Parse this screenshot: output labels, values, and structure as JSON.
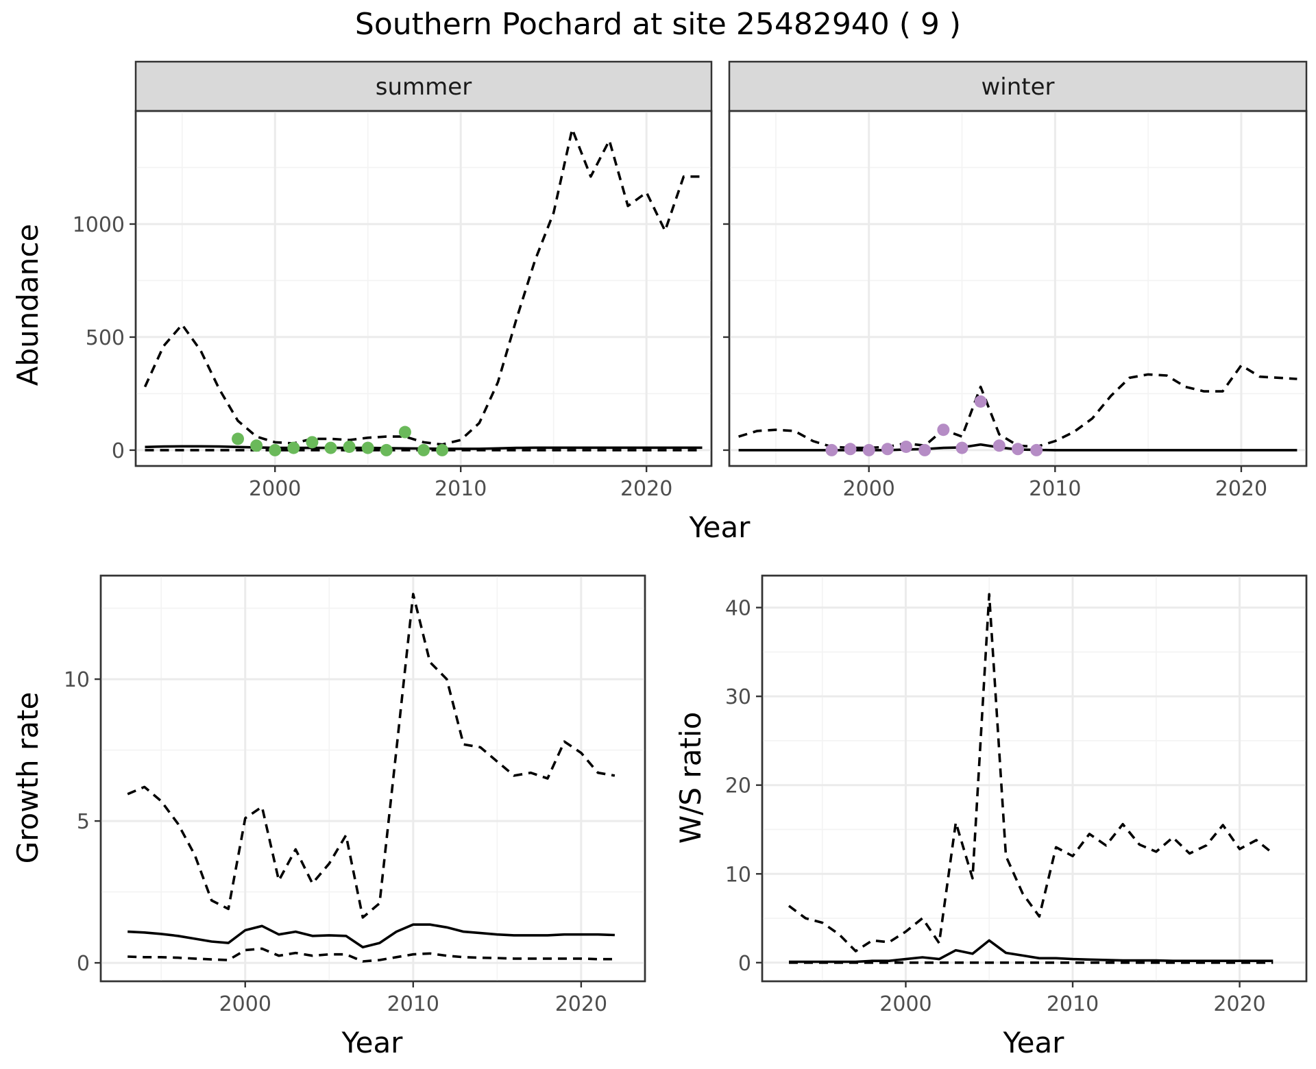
{
  "title": "Southern Pochard at site 25482940 ( 9 )",
  "chart_data": [
    {
      "type": "line",
      "panel": "summer",
      "strip_label": "summer",
      "xlabel": "Year",
      "ylabel": "Abundance",
      "xlim": [
        1992.5,
        2023.5
      ],
      "ylim": [
        -70,
        1500
      ],
      "x_ticks": [
        2000,
        2010,
        2020
      ],
      "y_ticks": [
        0,
        500,
        1000
      ],
      "grid": true,
      "series": [
        {
          "style": "dashed",
          "color": "#000000",
          "x": [
            1993,
            1994,
            1995,
            1996,
            1997,
            1998,
            1999,
            2000,
            2001,
            2002,
            2003,
            2004,
            2005,
            2006,
            2007,
            2008,
            2009,
            2010,
            2011,
            2012,
            2013,
            2014,
            2015,
            2016,
            2017,
            2018,
            2019,
            2020,
            2021,
            2022,
            2023
          ],
          "y": [
            280,
            460,
            555,
            440,
            270,
            130,
            60,
            35,
            30,
            50,
            50,
            45,
            55,
            60,
            60,
            35,
            25,
            45,
            120,
            300,
            580,
            840,
            1050,
            1420,
            1210,
            1370,
            1080,
            1140,
            970,
            1210,
            1210
          ]
        },
        {
          "style": "solid",
          "color": "#000000",
          "x": [
            1993,
            1994,
            1995,
            1996,
            1997,
            1998,
            1999,
            2000,
            2001,
            2002,
            2003,
            2004,
            2005,
            2006,
            2007,
            2008,
            2009,
            2010,
            2011,
            2012,
            2013,
            2014,
            2015,
            2016,
            2017,
            2018,
            2019,
            2020,
            2021,
            2022,
            2023
          ],
          "y": [
            14,
            16,
            17,
            17,
            16,
            14,
            12,
            10,
            10,
            10,
            10,
            10,
            10,
            9,
            8,
            7,
            6,
            6,
            6,
            8,
            10,
            11,
            11,
            11,
            11,
            11,
            11,
            11,
            11,
            11,
            11
          ]
        },
        {
          "style": "dashed",
          "color": "#000000",
          "x": [
            1993,
            1998,
            2003,
            2008,
            2013,
            2018,
            2023
          ],
          "y": [
            0,
            0,
            0,
            0,
            0,
            0,
            0
          ]
        },
        {
          "style": "points",
          "color": "#6ab95a",
          "x": [
            1998,
            1999,
            2000,
            2001,
            2002,
            2003,
            2004,
            2005,
            2006,
            2007,
            2008,
            2009
          ],
          "y": [
            50,
            20,
            0,
            10,
            35,
            10,
            15,
            10,
            0,
            80,
            0,
            0
          ]
        }
      ]
    },
    {
      "type": "line",
      "panel": "winter",
      "strip_label": "winter",
      "xlabel": "Year",
      "ylabel": "Abundance",
      "xlim": [
        1992.5,
        2023.5
      ],
      "ylim": [
        -70,
        1500
      ],
      "x_ticks": [
        2000,
        2010,
        2020
      ],
      "y_ticks": [
        0,
        500,
        1000
      ],
      "grid": true,
      "series": [
        {
          "style": "dashed",
          "color": "#000000",
          "x": [
            1993,
            1994,
            1995,
            1996,
            1997,
            1998,
            1999,
            2000,
            2001,
            2002,
            2003,
            2004,
            2005,
            2006,
            2007,
            2008,
            2009,
            2010,
            2011,
            2012,
            2013,
            2014,
            2015,
            2016,
            2017,
            2018,
            2019,
            2020,
            2021,
            2022,
            2023
          ],
          "y": [
            60,
            85,
            90,
            85,
            40,
            15,
            10,
            10,
            15,
            30,
            20,
            90,
            60,
            280,
            70,
            20,
            15,
            40,
            80,
            140,
            240,
            320,
            335,
            330,
            280,
            260,
            260,
            375,
            325,
            320,
            315
          ]
        },
        {
          "style": "solid",
          "color": "#000000",
          "x": [
            1993,
            1994,
            1995,
            1996,
            1997,
            1998,
            1999,
            2000,
            2001,
            2002,
            2003,
            2004,
            2005,
            2006,
            2007,
            2008,
            2009,
            2010,
            2011,
            2012,
            2013,
            2014,
            2015,
            2016,
            2017,
            2018,
            2019,
            2020,
            2021,
            2022,
            2023
          ],
          "y": [
            0,
            0,
            0,
            0,
            0,
            0,
            0,
            0,
            0,
            3,
            5,
            10,
            12,
            25,
            12,
            3,
            1,
            0,
            0,
            0,
            0,
            0,
            0,
            0,
            0,
            0,
            0,
            0,
            0,
            0,
            0
          ]
        },
        {
          "style": "points",
          "color": "#b58cc5",
          "x": [
            1998,
            1999,
            2000,
            2001,
            2002,
            2003,
            2004,
            2005,
            2006,
            2007,
            2008,
            2009
          ],
          "y": [
            0,
            5,
            0,
            5,
            15,
            0,
            90,
            10,
            215,
            20,
            5,
            0
          ]
        }
      ]
    },
    {
      "type": "line",
      "panel": "growth",
      "xlabel": "Year",
      "ylabel": "Growth rate",
      "xlim": [
        1991.4,
        2023.8
      ],
      "ylim": [
        -0.65,
        13.65
      ],
      "x_ticks": [
        2000,
        2010,
        2020
      ],
      "y_ticks": [
        0,
        5,
        10
      ],
      "grid": true,
      "series": [
        {
          "style": "dashed",
          "color": "#000000",
          "x": [
            1993,
            1994,
            1995,
            1996,
            1997,
            1998,
            1999,
            2000,
            2001,
            2002,
            2003,
            2004,
            2005,
            2006,
            2007,
            2008,
            2009,
            2010,
            2011,
            2012,
            2013,
            2014,
            2015,
            2016,
            2017,
            2018,
            2019,
            2020,
            2021,
            2022
          ],
          "y": [
            5.95,
            6.2,
            5.7,
            4.9,
            3.8,
            2.2,
            1.9,
            5.1,
            5.5,
            2.9,
            4.0,
            2.8,
            3.5,
            4.5,
            1.6,
            2.1,
            7.5,
            13.0,
            10.6,
            10.0,
            7.7,
            7.6,
            7.1,
            6.6,
            6.7,
            6.5,
            7.8,
            7.4,
            6.7,
            6.6
          ]
        },
        {
          "style": "solid",
          "color": "#000000",
          "x": [
            1993,
            1994,
            1995,
            1996,
            1997,
            1998,
            1999,
            2000,
            2001,
            2002,
            2003,
            2004,
            2005,
            2006,
            2007,
            2008,
            2009,
            2010,
            2011,
            2012,
            2013,
            2014,
            2015,
            2016,
            2017,
            2018,
            2019,
            2020,
            2021,
            2022
          ],
          "y": [
            1.1,
            1.07,
            1.02,
            0.95,
            0.85,
            0.75,
            0.7,
            1.15,
            1.3,
            1.0,
            1.1,
            0.95,
            0.97,
            0.95,
            0.55,
            0.7,
            1.1,
            1.35,
            1.35,
            1.25,
            1.1,
            1.05,
            1.0,
            0.97,
            0.97,
            0.97,
            1.0,
            1.0,
            1.0,
            0.98
          ]
        },
        {
          "style": "dashed",
          "color": "#000000",
          "x": [
            1993,
            1994,
            1995,
            1996,
            1997,
            1998,
            1999,
            2000,
            2001,
            2002,
            2003,
            2004,
            2005,
            2006,
            2007,
            2008,
            2009,
            2010,
            2011,
            2012,
            2013,
            2014,
            2015,
            2016,
            2017,
            2018,
            2019,
            2020,
            2021,
            2022
          ],
          "y": [
            0.22,
            0.2,
            0.2,
            0.18,
            0.15,
            0.12,
            0.1,
            0.45,
            0.5,
            0.25,
            0.35,
            0.25,
            0.3,
            0.3,
            0.05,
            0.1,
            0.2,
            0.3,
            0.33,
            0.25,
            0.2,
            0.18,
            0.17,
            0.15,
            0.15,
            0.15,
            0.15,
            0.15,
            0.13,
            0.13
          ]
        }
      ]
    },
    {
      "type": "line",
      "panel": "ratio",
      "xlabel": "Year",
      "ylabel": "W/S ratio",
      "xlim": [
        1991.4,
        2024.0
      ],
      "ylim": [
        -2.1,
        43.6
      ],
      "x_ticks": [
        2000,
        2010,
        2020
      ],
      "y_ticks": [
        0,
        10,
        20,
        30,
        40
      ],
      "grid": true,
      "series": [
        {
          "style": "dashed",
          "color": "#000000",
          "x": [
            1993,
            1994,
            1995,
            1996,
            1997,
            1998,
            1999,
            2000,
            2001,
            2002,
            2003,
            2004,
            2005,
            2006,
            2007,
            2008,
            2009,
            2010,
            2011,
            2012,
            2013,
            2014,
            2015,
            2016,
            2017,
            2018,
            2019,
            2020,
            2021,
            2022
          ],
          "y": [
            6.4,
            5.0,
            4.5,
            3.2,
            1.3,
            2.5,
            2.3,
            3.5,
            5.0,
            2.2,
            15.8,
            9.5,
            41.5,
            12.0,
            7.8,
            5.2,
            13.0,
            12.0,
            14.5,
            13.2,
            15.6,
            13.3,
            12.5,
            14.1,
            12.3,
            13.2,
            15.5,
            12.8,
            13.8,
            12.3
          ]
        },
        {
          "style": "solid",
          "color": "#000000",
          "x": [
            1993,
            1994,
            1995,
            1996,
            1997,
            1998,
            1999,
            2000,
            2001,
            2002,
            2003,
            2004,
            2005,
            2006,
            2007,
            2008,
            2009,
            2010,
            2011,
            2012,
            2013,
            2014,
            2015,
            2016,
            2017,
            2018,
            2019,
            2020,
            2021,
            2022
          ],
          "y": [
            0.1,
            0.1,
            0.1,
            0.1,
            0.1,
            0.2,
            0.2,
            0.4,
            0.6,
            0.4,
            1.4,
            1.0,
            2.5,
            1.1,
            0.8,
            0.5,
            0.5,
            0.4,
            0.35,
            0.3,
            0.25,
            0.25,
            0.25,
            0.2,
            0.2,
            0.2,
            0.2,
            0.2,
            0.2,
            0.2
          ]
        },
        {
          "style": "dashed",
          "color": "#000000",
          "x": [
            1993,
            1998,
            2003,
            2008,
            2013,
            2018,
            2022
          ],
          "y": [
            0,
            0,
            0,
            0,
            0,
            0,
            0
          ]
        }
      ]
    }
  ]
}
